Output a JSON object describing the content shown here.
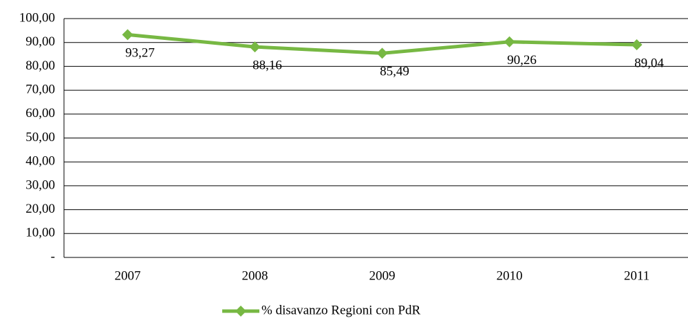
{
  "chart_data": {
    "type": "line",
    "categories": [
      "2007",
      "2008",
      "2009",
      "2010",
      "2011"
    ],
    "series": [
      {
        "name": "% disavanzo Regioni con PdR",
        "color": "#77b843",
        "values": [
          93.27,
          88.16,
          85.49,
          90.26,
          89.04
        ],
        "value_labels": [
          "93,27",
          "88,16",
          "85,49",
          "90,26",
          "89,04"
        ]
      }
    ],
    "ylim": [
      0,
      100
    ],
    "yticks": [
      {
        "value": 0,
        "label": "-"
      },
      {
        "value": 10,
        "label": "10,00"
      },
      {
        "value": 20,
        "label": "20,00"
      },
      {
        "value": 30,
        "label": "30,00"
      },
      {
        "value": 40,
        "label": "40,00"
      },
      {
        "value": 50,
        "label": "50,00"
      },
      {
        "value": 60,
        "label": "60,00"
      },
      {
        "value": 70,
        "label": "70,00"
      },
      {
        "value": 80,
        "label": "80,00"
      },
      {
        "value": 90,
        "label": "90,00"
      },
      {
        "value": 100,
        "label": "100,00"
      }
    ],
    "grid": true,
    "legend": "bottom"
  }
}
